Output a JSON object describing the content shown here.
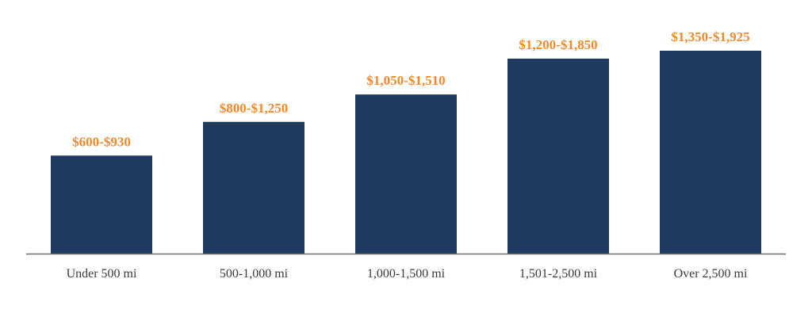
{
  "chart_data": {
    "type": "bar",
    "title": "",
    "xlabel": "",
    "ylabel": "",
    "categories": [
      "Under 500 mi",
      "500-1,000 mi",
      "1,000-1,500 mi",
      "1,501-2,500 mi",
      "Over 2,500 mi"
    ],
    "series": [
      {
        "values": [
          930,
          1250,
          1510,
          1850,
          1925
        ],
        "low_values": [
          600,
          800,
          1050,
          1200,
          1350
        ],
        "data_labels": [
          "$600-$930",
          "$800-$1,250",
          "$1,050-$1,510",
          "$1,200-$1,850",
          "$1,350-$1,925"
        ]
      }
    ],
    "ylim": [
      0,
      2000
    ],
    "grid": false,
    "colors": {
      "bar": "#1f3a5f",
      "data_label": "#f0892a",
      "tick_label": "#3a3a3a",
      "axis": "#6b6b6b"
    }
  }
}
